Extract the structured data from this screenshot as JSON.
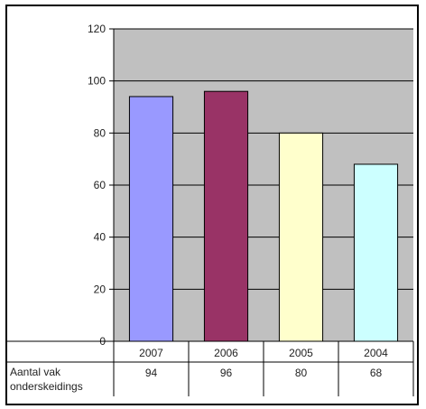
{
  "chart_data": {
    "type": "bar",
    "categories": [
      "2007",
      "2006",
      "2005",
      "2004"
    ],
    "series": [
      {
        "name": "Aantal vak onderskeidings",
        "values": [
          94,
          96,
          80,
          68
        ],
        "colors": [
          "#9999ff",
          "#993366",
          "#ffffcc",
          "#ccffff"
        ]
      }
    ],
    "ylim": [
      0,
      120
    ],
    "yticks": [
      "0",
      "20",
      "40",
      "60",
      "80",
      "100",
      "120"
    ],
    "grid": true,
    "plot_background": "#c0c0c0",
    "data_table": {
      "row_label_line1": "Aantal vak",
      "row_label_line2": "onderskeidings",
      "values": [
        "94",
        "96",
        "80",
        "68"
      ]
    }
  }
}
